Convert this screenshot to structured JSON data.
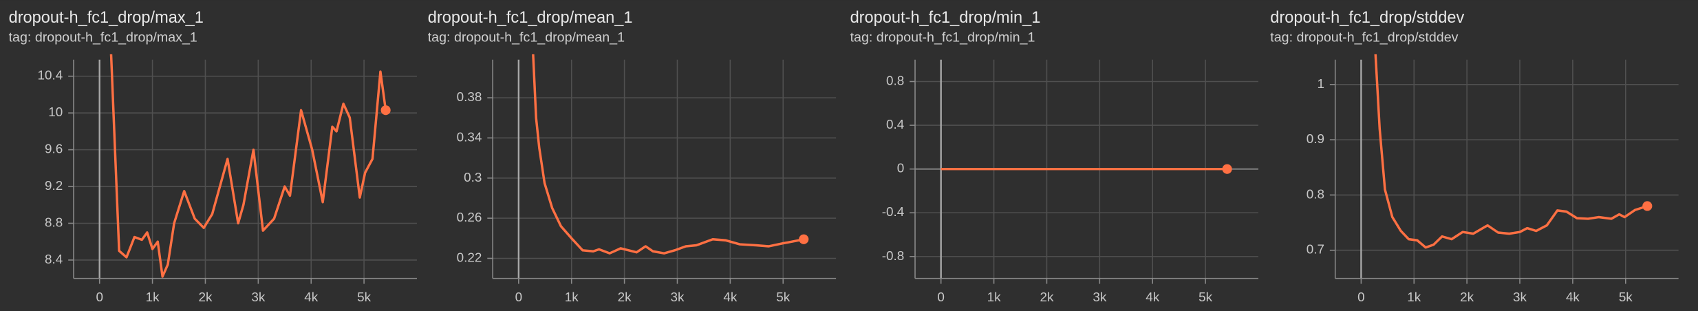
{
  "chart_data": [
    {
      "type": "line",
      "title": "dropout-h_fc1_drop/max_1",
      "subtitle": "tag: dropout-h_fc1_drop/max_1",
      "color": "#ff7043",
      "grid": true,
      "x": [
        200,
        370,
        510,
        660,
        800,
        900,
        1000,
        1100,
        1190,
        1290,
        1410,
        1600,
        1800,
        1970,
        2130,
        2420,
        2620,
        2720,
        2910,
        3090,
        3300,
        3500,
        3600,
        3810,
        4020,
        4220,
        4400,
        4480,
        4610,
        4730,
        4920,
        5020,
        5160,
        5310,
        5410
      ],
      "values": [
        10.9,
        8.5,
        8.43,
        8.65,
        8.62,
        8.7,
        8.52,
        8.6,
        8.22,
        8.35,
        8.8,
        9.15,
        8.85,
        8.75,
        8.9,
        9.5,
        8.8,
        9.0,
        9.6,
        8.72,
        8.85,
        9.2,
        9.1,
        10.03,
        9.6,
        9.03,
        9.85,
        9.8,
        10.1,
        9.95,
        9.08,
        9.35,
        9.5,
        10.45,
        10.03
      ],
      "xlim": [
        -490,
        6000
      ],
      "ylim": [
        8.2,
        10.58
      ],
      "xticks": [
        0,
        {
          "value": 1000,
          "label": "1k"
        },
        {
          "value": 2000,
          "label": "2k"
        },
        {
          "value": 3000,
          "label": "3k"
        },
        {
          "value": 4000,
          "label": "4k"
        },
        {
          "value": 5000,
          "label": "5k"
        }
      ],
      "yticks": [
        8.4,
        8.8,
        9.2,
        9.6,
        10,
        10.4
      ]
    },
    {
      "type": "line",
      "title": "dropout-h_fc1_drop/mean_1",
      "subtitle": "tag: dropout-h_fc1_drop/mean_1",
      "color": "#ff7043",
      "grid": true,
      "x": [
        250,
        330,
        390,
        490,
        635,
        800,
        1000,
        1210,
        1410,
        1520,
        1720,
        1930,
        2230,
        2400,
        2540,
        2750,
        2950,
        3160,
        3360,
        3670,
        3910,
        4180,
        4490,
        4730,
        5000,
        5200,
        5390
      ],
      "values": [
        0.45,
        0.36,
        0.33,
        0.295,
        0.27,
        0.252,
        0.24,
        0.228,
        0.227,
        0.229,
        0.225,
        0.23,
        0.226,
        0.232,
        0.227,
        0.225,
        0.228,
        0.232,
        0.233,
        0.239,
        0.238,
        0.234,
        0.233,
        0.232,
        0.235,
        0.237,
        0.239
      ],
      "xlim": [
        -490,
        6000
      ],
      "ylim": [
        0.2,
        0.418
      ],
      "xticks": [
        0,
        {
          "value": 1000,
          "label": "1k"
        },
        {
          "value": 2000,
          "label": "2k"
        },
        {
          "value": 3000,
          "label": "3k"
        },
        {
          "value": 4000,
          "label": "4k"
        },
        {
          "value": 5000,
          "label": "5k"
        }
      ],
      "yticks": [
        0.22,
        0.26,
        0.3,
        0.34,
        0.38
      ]
    },
    {
      "type": "line",
      "title": "dropout-h_fc1_drop/min_1",
      "subtitle": "tag: dropout-h_fc1_drop/min_1",
      "color": "#ff7043",
      "grid": true,
      "x": [
        0,
        1000,
        2000,
        3000,
        4000,
        5000,
        5410
      ],
      "values": [
        0,
        0,
        0,
        0,
        0,
        0,
        0
      ],
      "xlim": [
        -490,
        6000
      ],
      "ylim": [
        -1,
        1
      ],
      "xticks": [
        0,
        {
          "value": 1000,
          "label": "1k"
        },
        {
          "value": 2000,
          "label": "2k"
        },
        {
          "value": 3000,
          "label": "3k"
        },
        {
          "value": 4000,
          "label": "4k"
        },
        {
          "value": 5000,
          "label": "5k"
        }
      ],
      "yticks": [
        -0.8,
        -0.4,
        0,
        0.4,
        0.8
      ]
    },
    {
      "type": "line",
      "title": "dropout-h_fc1_drop/stddev",
      "subtitle": "tag: dropout-h_fc1_drop/stddev",
      "color": "#ff7043",
      "grid": true,
      "x": [
        245,
        350,
        450,
        590,
        750,
        900,
        1060,
        1220,
        1370,
        1530,
        1710,
        1920,
        2120,
        2390,
        2590,
        2800,
        3000,
        3140,
        3310,
        3510,
        3710,
        3880,
        4080,
        4290,
        4490,
        4730,
        4880,
        4980,
        5180,
        5410
      ],
      "values": [
        1.1,
        0.92,
        0.81,
        0.76,
        0.735,
        0.72,
        0.718,
        0.705,
        0.71,
        0.725,
        0.72,
        0.733,
        0.73,
        0.745,
        0.732,
        0.73,
        0.733,
        0.74,
        0.735,
        0.745,
        0.772,
        0.77,
        0.758,
        0.757,
        0.76,
        0.757,
        0.765,
        0.76,
        0.773,
        0.78
      ],
      "xlim": [
        -490,
        6000
      ],
      "ylim": [
        0.649,
        1.045
      ],
      "xticks": [
        0,
        {
          "value": 1000,
          "label": "1k"
        },
        {
          "value": 2000,
          "label": "2k"
        },
        {
          "value": 3000,
          "label": "3k"
        },
        {
          "value": 4000,
          "label": "4k"
        },
        {
          "value": 5000,
          "label": "5k"
        }
      ],
      "yticks": [
        0.7,
        0.8,
        0.9,
        1
      ]
    }
  ]
}
